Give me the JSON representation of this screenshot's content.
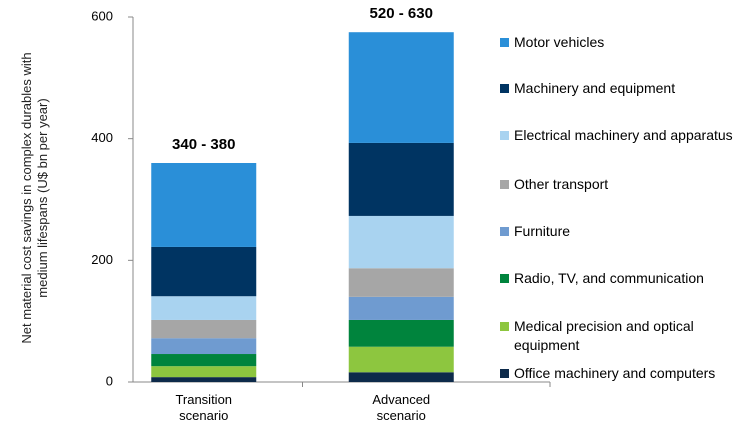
{
  "chart_data": {
    "type": "stacked_bar",
    "y_label": "Net material cost savings in complex durables with medium lifespans (U$ bn per year)",
    "categories": [
      "Transition scenario",
      "Advanced scenario"
    ],
    "bar_labels": [
      "340 - 380",
      "520 - 630"
    ],
    "series": [
      {
        "name": "Office machinery and computers",
        "color": "#0d2a4a",
        "values": [
          8,
          16
        ]
      },
      {
        "name": "Medical precision and optical equipment",
        "color": "#8dc63f",
        "values": [
          18,
          42
        ]
      },
      {
        "name": "Radio, TV, and communication",
        "color": "#00843d",
        "values": [
          20,
          44
        ]
      },
      {
        "name": "Furniture",
        "color": "#6f9bd0",
        "values": [
          26,
          38
        ]
      },
      {
        "name": "Other transport",
        "color": "#a6a6a6",
        "values": [
          30,
          47
        ]
      },
      {
        "name": "Electrical machinery and apparatus",
        "color": "#a9d3f0",
        "values": [
          39,
          86
        ]
      },
      {
        "name": "Machinery and equipment",
        "color": "#003462",
        "values": [
          81,
          120
        ]
      },
      {
        "name": "Motor vehicles",
        "color": "#2a8fd8",
        "values": [
          138,
          182
        ]
      }
    ],
    "ylim": [
      0,
      600
    ],
    "yticks": [
      0,
      200,
      400,
      600
    ]
  }
}
